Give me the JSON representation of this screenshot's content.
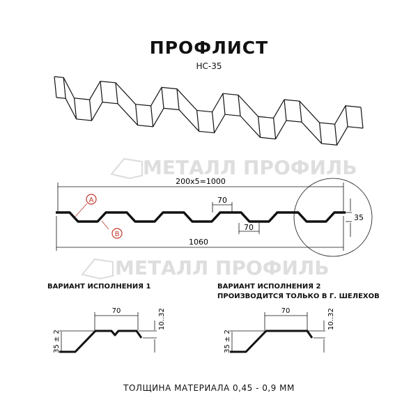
{
  "header": {
    "title": "ПРОФЛИСТ",
    "subtitle": "НС-35"
  },
  "main_profile": {
    "dim_total_pitch": "200x5=1000",
    "dim_width": "1060",
    "dim_top_flange": "70",
    "dim_bottom_flange": "70",
    "dim_height": "35",
    "marker_a": "A",
    "marker_b": "B"
  },
  "watermark": "МЕТАЛЛ ПРОФИЛЬ",
  "variant1": {
    "caption": "ВАРИАНТ ИСПОЛНЕНИЯ 1",
    "dim_width": "70",
    "dim_height": "35 ± 2",
    "dim_edge": "10..32"
  },
  "variant2": {
    "caption_line1": "ВАРИАНТ ИСПОЛНЕНИЯ 2",
    "caption_line2": "ПРОИЗВОДИТСЯ ТОЛЬКО В Г. ШЕЛЕХОВ",
    "dim_width": "70",
    "dim_height": "35 ± 2",
    "dim_edge": "10..32"
  },
  "footer": {
    "thickness": "ТОЛЩИНА МАТЕРИАЛА 0,45 - 0,9 ММ"
  },
  "colors": {
    "marker": "#c0392b",
    "line": "#111111",
    "watermark": "#dcdcdc"
  }
}
